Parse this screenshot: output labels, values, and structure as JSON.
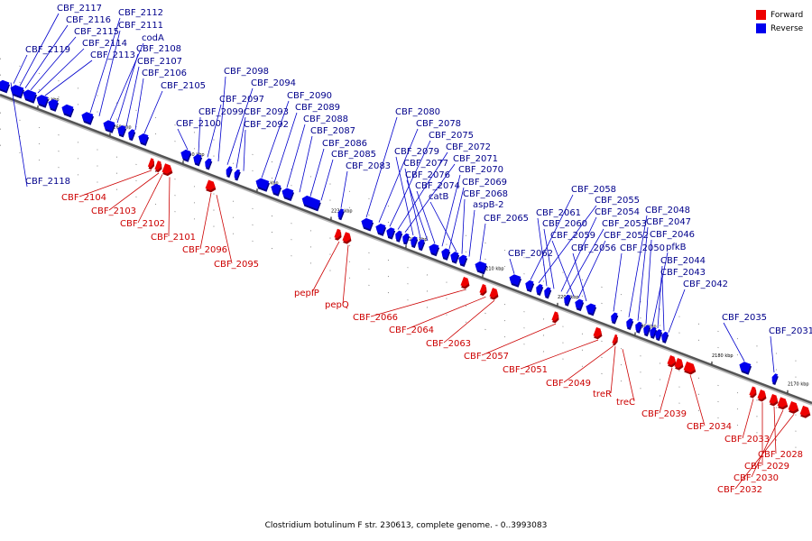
{
  "legend": {
    "forward": {
      "label": "Forward",
      "color": "#ee0000"
    },
    "reverse": {
      "label": "Reverse",
      "color": "#0000ee"
    }
  },
  "caption": "Clostridium botulinum F str. 230613, complete genome. - 0..3993083",
  "ticks": [
    "2270 kbp",
    "2260 kbp",
    "2250 kbp",
    "2240 kbp",
    "2230 kbp",
    "2220 kbp",
    "2210 kbp",
    "2200 kbp",
    "2190 kbp",
    "2180 kbp",
    "2170 kbp"
  ],
  "reverse_genes": [
    "CBF_2117",
    "CBF_2116",
    "CBF_2115",
    "CBF_2114",
    "CBF_2113",
    "CBF_2119",
    "CBF_2112",
    "CBF_2111",
    "codA",
    "CBF_2108",
    "CBF_2107",
    "CBF_2106",
    "CBF_2105",
    "CBF_2118",
    "CBF_2100",
    "CBF_2099",
    "CBF_2097",
    "CBF_2098",
    "CBF_2094",
    "CBF_2093",
    "CBF_2092",
    "CBF_2090",
    "CBF_2089",
    "CBF_2088",
    "CBF_2087",
    "CBF_2086",
    "CBF_2085",
    "CBF_2083",
    "CBF_2080",
    "CBF_2078",
    "CBF_2075",
    "CBF_2072",
    "CBF_2071",
    "CBF_2079",
    "CBF_2077",
    "CBF_2076",
    "CBF_2074",
    "CBF_2070",
    "CBF_2069",
    "catB",
    "CBF_2068",
    "aspB-2",
    "CBF_2065",
    "CBF_2058",
    "CBF_2055",
    "CBF_2061",
    "CBF_2060",
    "CBF_2054",
    "CBF_2053",
    "CBF_2059",
    "CBF_2052",
    "CBF_2056",
    "CBF_2062",
    "CBF_2050",
    "CBF_2048",
    "CBF_2047",
    "CBF_2046",
    "pfkB",
    "CBF_2044",
    "CBF_2043",
    "CBF_2042",
    "CBF_2035",
    "CBF_2031"
  ],
  "forward_genes": [
    "CBF_2104",
    "CBF_2103",
    "CBF_2102",
    "CBF_2101",
    "CBF_2096",
    "CBF_2095",
    "pepIP",
    "pepQ",
    "CBF_2066",
    "CBF_2064",
    "CBF_2063",
    "CBF_2057",
    "CBF_2051",
    "CBF_2049",
    "treR",
    "treC",
    "CBF_2039",
    "CBF_2034",
    "CBF_2033",
    "CBF_2029",
    "CBF_2028",
    "CBF_2030",
    "CBF_2032"
  ]
}
